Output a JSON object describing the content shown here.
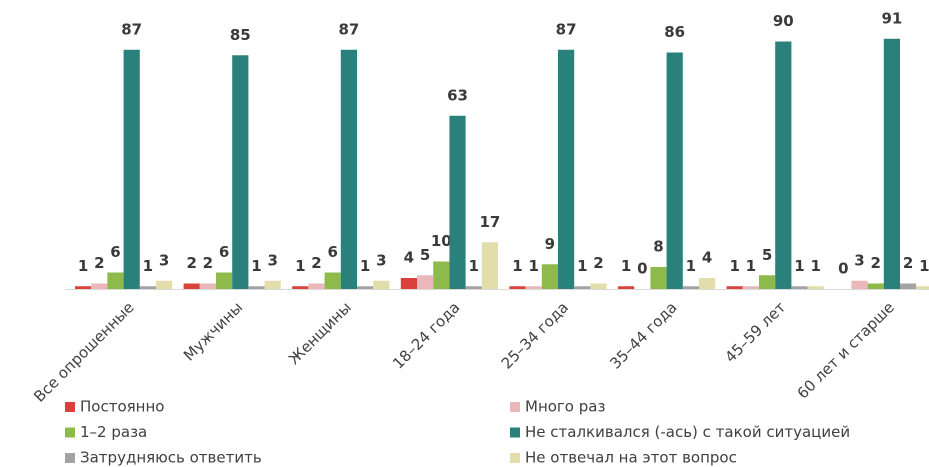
{
  "chart_data": {
    "type": "bar",
    "categories": [
      "Все опрошенные",
      "Мужчины",
      "Женщины",
      "18–24 года",
      "25–34 года",
      "35–44 года",
      "45–59 лет",
      "60 лет и старше"
    ],
    "series": [
      {
        "name": "Постоянно",
        "color": "#d9413b",
        "values": [
          1,
          2,
          1,
          4,
          1,
          1,
          1,
          0
        ]
      },
      {
        "name": "Много раз",
        "color": "#eab8bb",
        "values": [
          2,
          2,
          2,
          5,
          1,
          0,
          1,
          3
        ]
      },
      {
        "name": "1–2 раза",
        "color": "#8dba4b",
        "values": [
          6,
          6,
          6,
          10,
          9,
          8,
          5,
          2
        ]
      },
      {
        "name": "Не сталкивался (-ась) с такой ситуацией",
        "color": "#2a817b",
        "values": [
          87,
          85,
          87,
          63,
          87,
          86,
          90,
          91
        ]
      },
      {
        "name": "Затрудняюсь ответить",
        "color": "#a3a3a3",
        "values": [
          1,
          1,
          1,
          1,
          1,
          1,
          1,
          2
        ]
      },
      {
        "name": "Не отвечал на этот вопрос",
        "color": "#e2ddaa",
        "values": [
          3,
          3,
          3,
          17,
          2,
          4,
          1,
          1
        ]
      }
    ],
    "legend": "bottom"
  }
}
